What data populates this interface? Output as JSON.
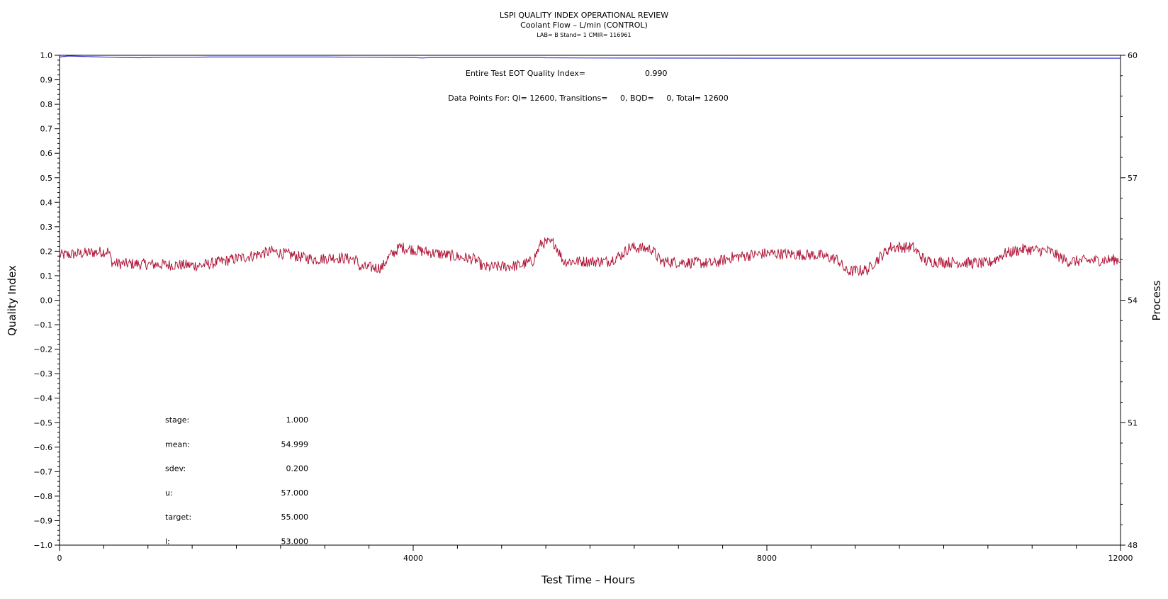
{
  "chart_data": {
    "type": "line",
    "title": "LSPI QUALITY INDEX OPERATIONAL REVIEW",
    "subtitle": "Coolant Flow – L/min (CONTROL)",
    "meta_line": "LAB= B Stand= 1 CMIR= 116961",
    "xlabel": "Test Time – Hours",
    "ylabel_left": "Quality Index",
    "ylabel_right": "Process",
    "xlim": [
      0,
      12000
    ],
    "ylim_left": [
      -1.0,
      1.0
    ],
    "ylim_right": [
      48,
      60
    ],
    "x_ticks": [
      0,
      4000,
      8000,
      12000
    ],
    "y_ticks_left": [
      "1.0",
      "0.9",
      "0.8",
      "0.7",
      "0.6",
      "0.5",
      "0.4",
      "0.3",
      "0.2",
      "0.1",
      "0.0",
      "-0.1",
      "-0.2",
      "-0.3",
      "-0.4",
      "-0.5",
      "-0.6",
      "-0.7",
      "-0.8",
      "-0.9",
      "-1.0"
    ],
    "y_ticks_right": [
      60,
      57,
      54,
      51,
      48
    ],
    "annotations": {
      "eot_label": "Entire Test EOT Quality Index=",
      "eot_value": "0.990",
      "data_points": "Data Points For: QI= 12600, Transitions=     0, BQD=     0, Total= 12600"
    },
    "stats": [
      {
        "label": "stage:",
        "value": "1.000"
      },
      {
        "label": "mean:",
        "value": "54.999"
      },
      {
        "label": "sdev:",
        "value": "0.200"
      },
      {
        "label": "u:",
        "value": "57.000"
      },
      {
        "label": "target:",
        "value": "55.000"
      },
      {
        "label": "l:",
        "value": "53.000"
      }
    ],
    "series": [
      {
        "axis": "left",
        "color": "#3a3ad0",
        "x": [
          0,
          100,
          200,
          400,
          600,
          700,
          900,
          1000,
          1200,
          1500,
          1700,
          2000,
          3000,
          4000,
          4100,
          4200,
          5000,
          5400,
          5500,
          6000,
          8000,
          10000,
          12000
        ],
        "y": [
          0.993,
          0.997,
          0.996,
          0.994,
          0.992,
          0.991,
          0.99,
          0.991,
          0.992,
          0.992,
          0.993,
          0.993,
          0.993,
          0.991,
          0.989,
          0.991,
          0.991,
          0.991,
          0.99,
          0.989,
          0.988,
          0.988,
          0.988
        ]
      },
      {
        "axis": "right",
        "color": "#b0183a",
        "x": [
          0,
          550,
          600,
          1600,
          2200,
          2400,
          2750,
          2900,
          3100,
          3350,
          3400,
          3650,
          3700,
          3850,
          4100,
          4700,
          4800,
          5200,
          5350,
          5450,
          5600,
          5700,
          6200,
          6350,
          6450,
          6700,
          6800,
          7400,
          7600,
          8000,
          8600,
          8800,
          8900,
          9150,
          9200,
          9400,
          9650,
          9800,
          10500,
          10700,
          10900,
          11200,
          11400,
          12000
        ],
        "y": [
          55.1,
          55.2,
          54.9,
          54.85,
          55.1,
          55.2,
          55.05,
          55.0,
          55.05,
          55.0,
          54.8,
          54.8,
          55.0,
          55.3,
          55.2,
          55.0,
          54.8,
          54.85,
          54.95,
          55.4,
          55.4,
          54.95,
          54.95,
          55.1,
          55.3,
          55.25,
          54.95,
          54.9,
          55.05,
          55.15,
          55.1,
          55.0,
          54.7,
          54.75,
          54.9,
          55.3,
          55.3,
          54.95,
          54.9,
          55.15,
          55.25,
          55.2,
          54.95,
          55.0
        ]
      }
    ]
  }
}
